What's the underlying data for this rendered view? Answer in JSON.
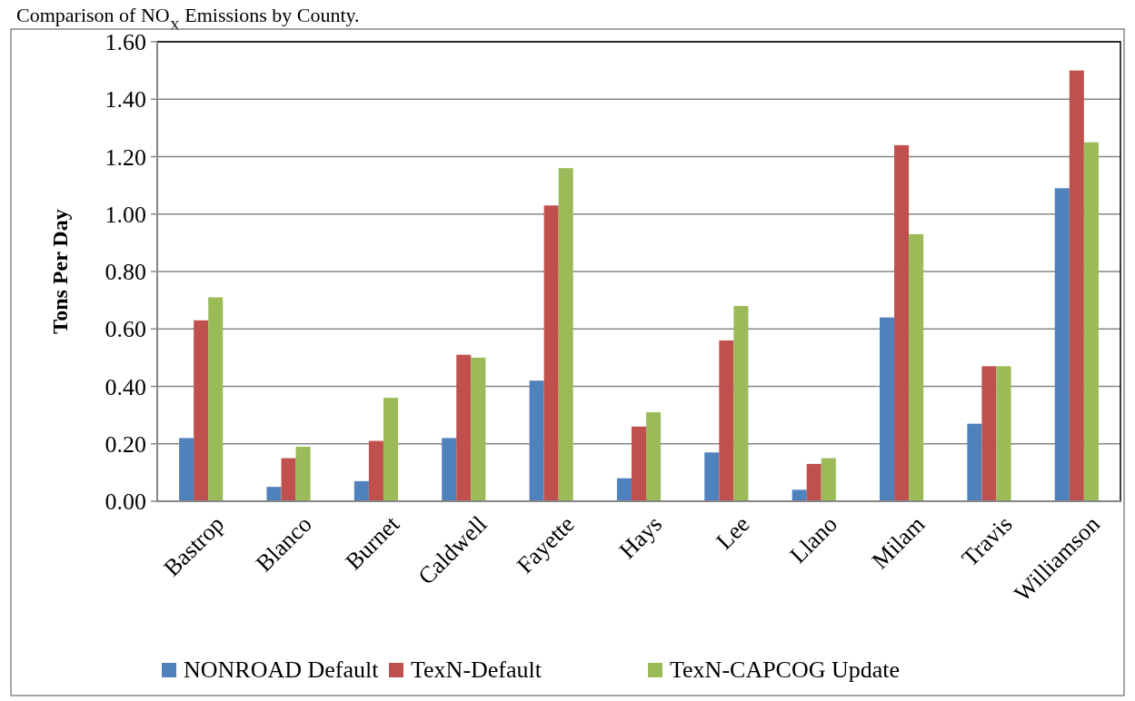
{
  "chart_data": {
    "type": "bar",
    "title": "Comparison of NO$_{X}$ Emissions by County.",
    "ylabel": "Tons Per Day",
    "categories": [
      "Bastrop",
      "Blanco",
      "Burnet",
      "Caldwell",
      "Fayette",
      "Hays",
      "Lee",
      "Llano",
      "Milam",
      "Travis",
      "Williamson"
    ],
    "series": [
      {
        "name": "NONROAD Default",
        "color": "#4f81bd",
        "values": [
          0.22,
          0.05,
          0.07,
          0.22,
          0.42,
          0.08,
          0.17,
          0.04,
          0.64,
          0.27,
          1.09
        ]
      },
      {
        "name": "TexN-Default",
        "color": "#c0504d",
        "values": [
          0.63,
          0.15,
          0.21,
          0.51,
          1.03,
          0.26,
          0.56,
          0.13,
          1.24,
          0.47,
          1.5
        ]
      },
      {
        "name": "TexN-CAPCOG Update",
        "color": "#9bbb59",
        "values": [
          0.71,
          0.19,
          0.36,
          0.5,
          1.16,
          0.31,
          0.68,
          0.15,
          0.93,
          0.47,
          1.25
        ]
      }
    ],
    "ylim": [
      0,
      1.6
    ],
    "yticks": [
      {
        "value": 0,
        "label": "0.00"
      },
      {
        "value": 0.2,
        "label": "0.20"
      },
      {
        "value": 0.4,
        "label": "0.40"
      },
      {
        "value": 0.6,
        "label": "0.60"
      },
      {
        "value": 0.8,
        "label": "0.80"
      },
      {
        "value": 1,
        "label": "1.00"
      },
      {
        "value": 1.2,
        "label": "1.20"
      },
      {
        "value": 1.4,
        "label": "1.40"
      },
      {
        "value": 1.6,
        "label": "1.60"
      }
    ],
    "grid": "y",
    "legend": "bottom"
  }
}
